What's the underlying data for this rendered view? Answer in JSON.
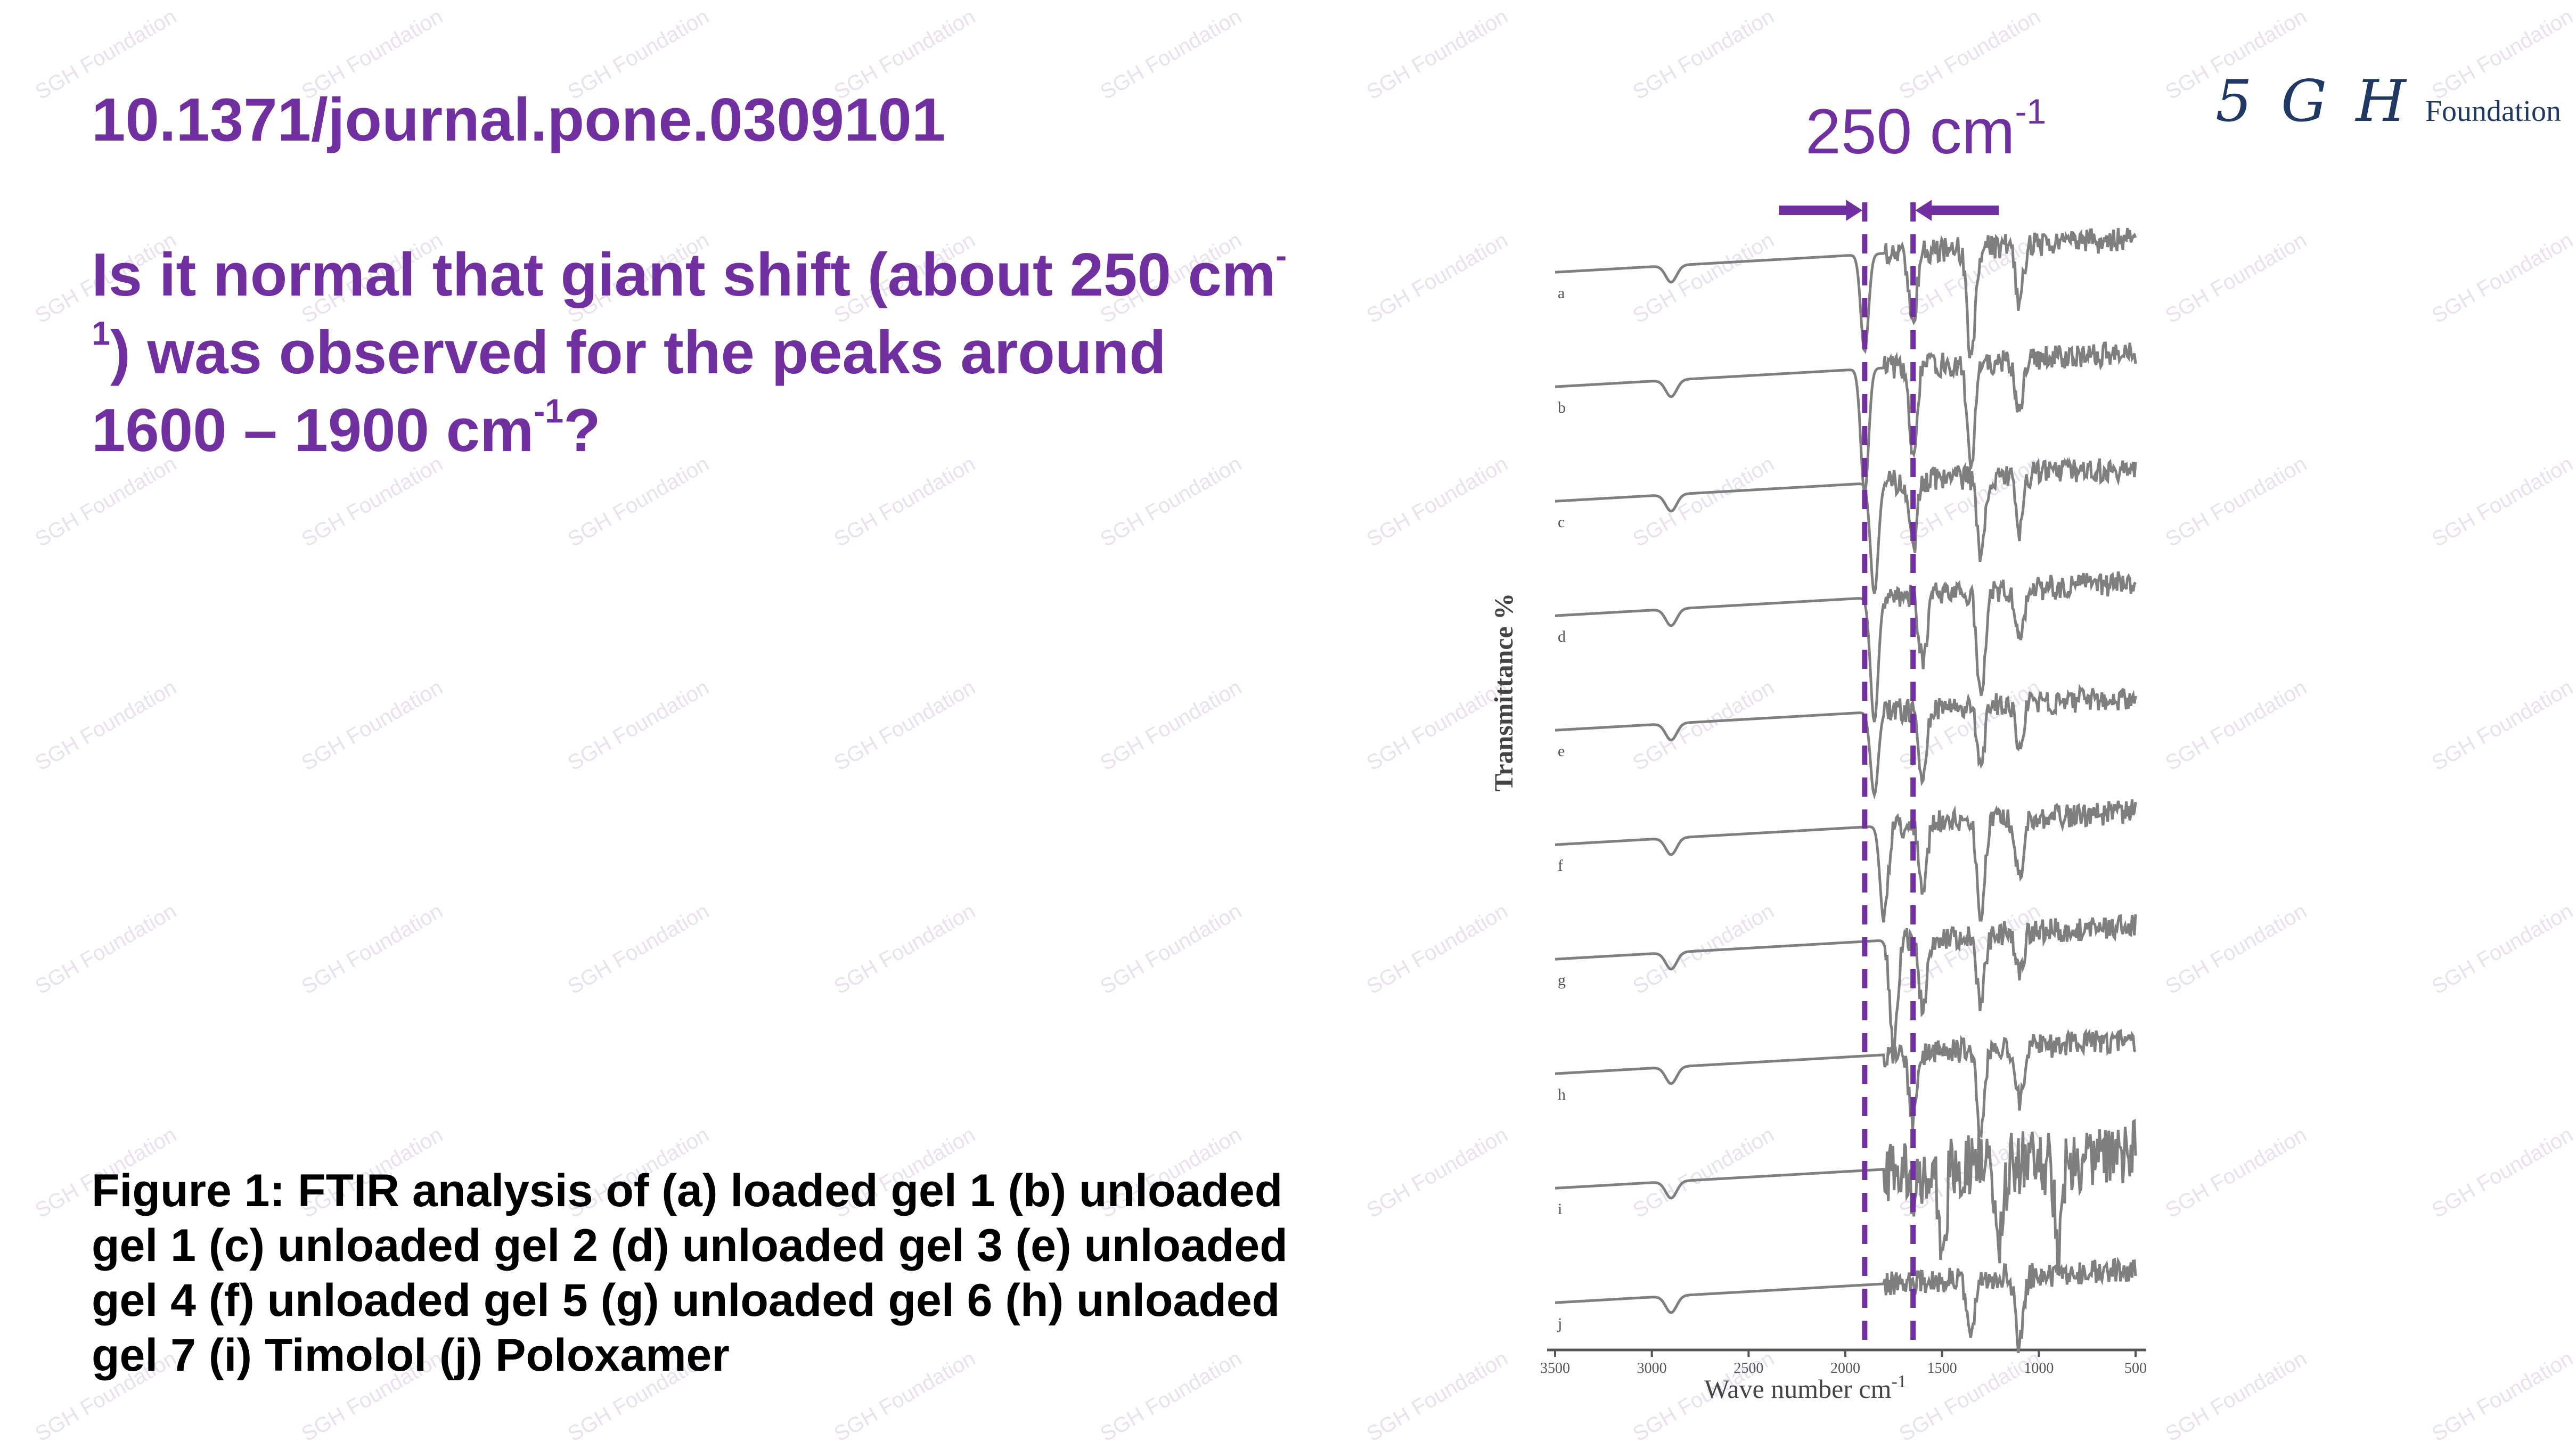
{
  "slide": {
    "doi": "10.1371/journal.pone.0309101",
    "question_before": "Is it normal that giant shift (about 250 cm",
    "question_sup1": "-1",
    "question_middle": ") was observed for the peaks around 1600 – 1900 cm",
    "question_sup2": "-1",
    "question_after": "?",
    "caption": "Figure 1: FTIR analysis of (a) loaded gel 1 (b) unloaded gel 1 (c) unloaded gel 2 (d) unloaded gel 3 (e) unloaded gel 4 (f) unloaded gel 5 (g) unloaded gel 6 (h) unloaded gel 7 (i) Timolol (j) Poloxamer",
    "watermark": "SGH Foundation"
  },
  "logo": {
    "mark": "5 G H",
    "word": "Foundation",
    "color": "#1f3864"
  },
  "annotation": {
    "shift_value": "250 cm",
    "shift_sup": "-1",
    "color": "#7030a0",
    "left_line_wavenumber": 1900,
    "right_line_wavenumber": 1650
  },
  "chart_data": {
    "type": "line",
    "ylabel": "Transmittance %",
    "xlabel": "Wave number cm",
    "xlabel_sup": "-1",
    "xlim": [
      3500,
      500
    ],
    "x_ticks": [
      3500,
      3000,
      2500,
      2000,
      1500,
      1000,
      500
    ],
    "x_tick_labels": [
      "3500",
      "3000",
      "2500",
      "2000",
      "1500",
      "1000",
      "500"
    ],
    "line_color": "#7f7f7f",
    "series": [
      {
        "name": "a",
        "baseline": 0.08,
        "dips": [
          [
            1900,
            0.07
          ],
          [
            1650,
            0.05
          ],
          [
            1350,
            0.08
          ],
          [
            1100,
            0.04
          ]
        ]
      },
      {
        "name": "b",
        "baseline": 0.08,
        "dips": [
          [
            1900,
            0.09
          ],
          [
            1650,
            0.06
          ],
          [
            1350,
            0.07
          ],
          [
            1100,
            0.04
          ]
        ]
      },
      {
        "name": "c",
        "baseline": 0.08,
        "dips": [
          [
            1850,
            0.08
          ],
          [
            1650,
            0.05
          ],
          [
            1300,
            0.06
          ],
          [
            1100,
            0.04
          ]
        ]
      },
      {
        "name": "d",
        "baseline": 0.08,
        "dips": [
          [
            1850,
            0.09
          ],
          [
            1600,
            0.05
          ],
          [
            1300,
            0.08
          ],
          [
            1100,
            0.04
          ]
        ]
      },
      {
        "name": "e",
        "baseline": 0.08,
        "dips": [
          [
            1850,
            0.06
          ],
          [
            1600,
            0.05
          ],
          [
            1300,
            0.04
          ],
          [
            1100,
            0.03
          ]
        ]
      },
      {
        "name": "f",
        "baseline": 0.08,
        "dips": [
          [
            1800,
            0.07
          ],
          [
            1600,
            0.05
          ],
          [
            1300,
            0.07
          ],
          [
            1100,
            0.04
          ]
        ]
      },
      {
        "name": "g",
        "baseline": 0.08,
        "dips": [
          [
            1750,
            0.08
          ],
          [
            1600,
            0.05
          ],
          [
            1300,
            0.05
          ],
          [
            1100,
            0.03
          ]
        ]
      },
      {
        "name": "h",
        "baseline": 0.08,
        "dips": [
          [
            1650,
            0.05
          ],
          [
            1300,
            0.06
          ],
          [
            1100,
            0.04
          ]
        ]
      },
      {
        "name": "i",
        "baseline": 0.08,
        "dips": [
          [
            1650,
            0.03
          ],
          [
            1500,
            0.06
          ],
          [
            1200,
            0.06
          ],
          [
            900,
            0.06
          ]
        ]
      },
      {
        "name": "j",
        "baseline": 0.08,
        "dips": [
          [
            1350,
            0.04
          ],
          [
            1100,
            0.05
          ]
        ]
      }
    ]
  }
}
